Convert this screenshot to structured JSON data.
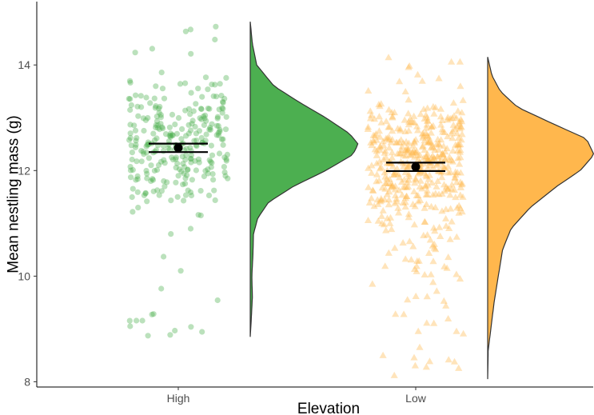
{
  "chart_data": {
    "type": "raincloud",
    "xlabel": "Elevation",
    "ylabel": "Mean nestling mass (g)",
    "ylim": [
      7.9,
      15.2
    ],
    "yticks": [
      8,
      10,
      12,
      14
    ],
    "grid": false,
    "legend": "none",
    "groups": [
      {
        "name": "High",
        "color": "#4CAF50",
        "point_shape": "circle",
        "n_points": 300,
        "mean": 12.43,
        "ci": [
          12.35,
          12.51
        ],
        "min": 8.85,
        "max": 14.82,
        "density": [
          [
            8.85,
            0.0
          ],
          [
            9.2,
            0.01
          ],
          [
            9.6,
            0.02
          ],
          [
            10.0,
            0.015
          ],
          [
            10.4,
            0.025
          ],
          [
            10.8,
            0.03
          ],
          [
            11.1,
            0.07
          ],
          [
            11.4,
            0.17
          ],
          [
            11.7,
            0.4
          ],
          [
            12.0,
            0.7
          ],
          [
            12.3,
            0.95
          ],
          [
            12.5,
            1.0
          ],
          [
            12.7,
            0.92
          ],
          [
            13.0,
            0.7
          ],
          [
            13.3,
            0.45
          ],
          [
            13.6,
            0.22
          ],
          [
            14.0,
            0.06
          ],
          [
            14.4,
            0.02
          ],
          [
            14.82,
            0.0
          ]
        ]
      },
      {
        "name": "Low",
        "color": "#FFB74D",
        "point_shape": "triangle",
        "n_points": 500,
        "mean": 12.07,
        "ci": [
          11.99,
          12.15
        ],
        "min": 8.05,
        "max": 14.15,
        "density": [
          [
            8.05,
            0.0
          ],
          [
            8.6,
            0.005
          ],
          [
            9.0,
            0.03
          ],
          [
            9.5,
            0.06
          ],
          [
            10.0,
            0.1
          ],
          [
            10.5,
            0.14
          ],
          [
            10.9,
            0.22
          ],
          [
            11.3,
            0.4
          ],
          [
            11.7,
            0.65
          ],
          [
            12.0,
            0.87
          ],
          [
            12.3,
            1.0
          ],
          [
            12.6,
            0.93
          ],
          [
            12.9,
            0.6
          ],
          [
            13.2,
            0.28
          ],
          [
            13.5,
            0.12
          ],
          [
            13.8,
            0.04
          ],
          [
            14.15,
            0.0
          ]
        ]
      }
    ]
  }
}
